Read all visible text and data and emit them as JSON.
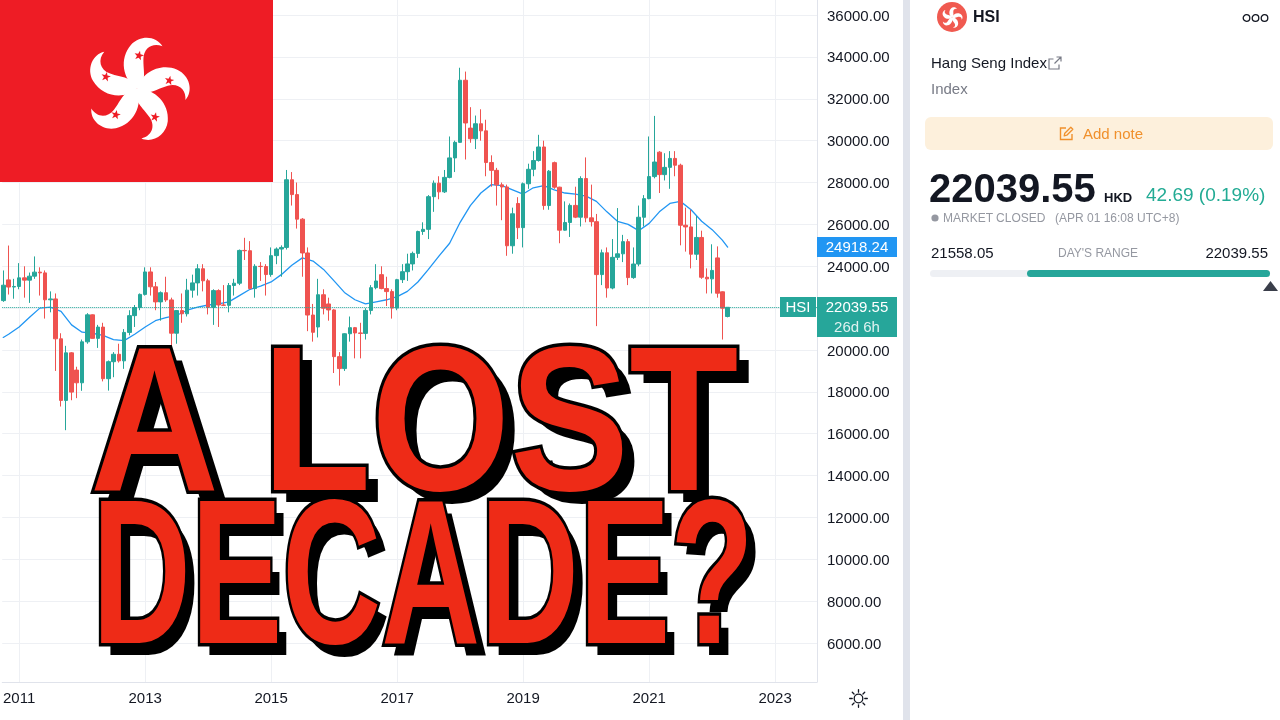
{
  "chart_data": {
    "type": "candlestick",
    "title": "A LOST DECADE?",
    "x": [
      "2010-10",
      "2010-11",
      "2010-12",
      "2011-01",
      "2011-02",
      "2011-03",
      "2011-04",
      "2011-05",
      "2011-06",
      "2011-07",
      "2011-08",
      "2011-09",
      "2011-10",
      "2011-11",
      "2011-12",
      "2012-01",
      "2012-02",
      "2012-03",
      "2012-04",
      "2012-05",
      "2012-06",
      "2012-07",
      "2012-08",
      "2012-09",
      "2012-10",
      "2012-11",
      "2012-12",
      "2013-01",
      "2013-02",
      "2013-03",
      "2013-04",
      "2013-05",
      "2013-06",
      "2013-07",
      "2013-08",
      "2013-09",
      "2013-10",
      "2013-11",
      "2013-12",
      "2014-01",
      "2014-02",
      "2014-03",
      "2014-04",
      "2014-05",
      "2014-06",
      "2014-07",
      "2014-08",
      "2014-09",
      "2014-10",
      "2014-11",
      "2014-12",
      "2015-01",
      "2015-02",
      "2015-03",
      "2015-04",
      "2015-05",
      "2015-06",
      "2015-07",
      "2015-08",
      "2015-09",
      "2015-10",
      "2015-11",
      "2015-12",
      "2016-01",
      "2016-02",
      "2016-03",
      "2016-04",
      "2016-05",
      "2016-06",
      "2016-07",
      "2016-08",
      "2016-09",
      "2016-10",
      "2016-11",
      "2016-12",
      "2017-01",
      "2017-02",
      "2017-03",
      "2017-04",
      "2017-05",
      "2017-06",
      "2017-07",
      "2017-08",
      "2017-09",
      "2017-10",
      "2017-11",
      "2017-12",
      "2018-01",
      "2018-02",
      "2018-03",
      "2018-04",
      "2018-05",
      "2018-06",
      "2018-07",
      "2018-08",
      "2018-09",
      "2018-10",
      "2018-11",
      "2018-12",
      "2019-01",
      "2019-02",
      "2019-03",
      "2019-04",
      "2019-05",
      "2019-06",
      "2019-07",
      "2019-08",
      "2019-09",
      "2019-10",
      "2019-11",
      "2019-12",
      "2020-01",
      "2020-02",
      "2020-03",
      "2020-04",
      "2020-05",
      "2020-06",
      "2020-07",
      "2020-08",
      "2020-09",
      "2020-10",
      "2020-11",
      "2020-12",
      "2021-01",
      "2021-02",
      "2021-03",
      "2021-04",
      "2021-05",
      "2021-06",
      "2021-07",
      "2021-08",
      "2021-09",
      "2021-10",
      "2021-11",
      "2021-12",
      "2022-01",
      "2022-02",
      "2022-03",
      "2022-04"
    ],
    "ohlc": [
      [
        22360,
        23800,
        22300,
        23096
      ],
      [
        23350,
        24990,
        22650,
        23008
      ],
      [
        23008,
        23400,
        22450,
        23035
      ],
      [
        23035,
        24150,
        22900,
        23447
      ],
      [
        23447,
        24000,
        22500,
        23338
      ],
      [
        23338,
        23700,
        22250,
        23527
      ],
      [
        23527,
        24470,
        23400,
        23720
      ],
      [
        23720,
        23950,
        22600,
        23684
      ],
      [
        23684,
        23800,
        21500,
        22398
      ],
      [
        22398,
        22800,
        21800,
        22440
      ],
      [
        22440,
        22700,
        19000,
        20535
      ],
      [
        20535,
        20800,
        17300,
        17592
      ],
      [
        17592,
        20200,
        16170,
        19864
      ],
      [
        19864,
        19900,
        17600,
        17989
      ],
      [
        19040,
        19200,
        17700,
        18434
      ],
      [
        18434,
        20500,
        18050,
        20390
      ],
      [
        20390,
        21760,
        20300,
        21680
      ],
      [
        21680,
        21700,
        20550,
        20556
      ],
      [
        20556,
        21200,
        20100,
        21094
      ],
      [
        21094,
        21300,
        18500,
        18630
      ],
      [
        18630,
        19500,
        18060,
        19441
      ],
      [
        19441,
        19900,
        18700,
        19796
      ],
      [
        19796,
        20300,
        19400,
        19482
      ],
      [
        19482,
        21000,
        19100,
        20840
      ],
      [
        20840,
        21900,
        20700,
        21641
      ],
      [
        21641,
        22150,
        21100,
        22030
      ],
      [
        22030,
        22700,
        21900,
        22657
      ],
      [
        22657,
        23950,
        22600,
        23729
      ],
      [
        23729,
        23950,
        22600,
        23020
      ],
      [
        23020,
        23250,
        21900,
        22299
      ],
      [
        22299,
        22800,
        21400,
        22737
      ],
      [
        22737,
        23500,
        22300,
        22392
      ],
      [
        22392,
        22500,
        19400,
        20803
      ],
      [
        20803,
        21900,
        20300,
        21883
      ],
      [
        21883,
        22700,
        21300,
        21731
      ],
      [
        21731,
        23400,
        21600,
        22859
      ],
      [
        22859,
        23600,
        22500,
        23206
      ],
      [
        23206,
        24100,
        22600,
        23881
      ],
      [
        23881,
        24100,
        22800,
        23306
      ],
      [
        23306,
        23400,
        21700,
        22035
      ],
      [
        22035,
        22900,
        21200,
        22837
      ],
      [
        22837,
        22900,
        21100,
        22151
      ],
      [
        22151,
        23100,
        22100,
        22134
      ],
      [
        22134,
        23200,
        21800,
        23082
      ],
      [
        23082,
        23400,
        22600,
        23191
      ],
      [
        23191,
        24800,
        23100,
        24757
      ],
      [
        24757,
        25360,
        24300,
        24742
      ],
      [
        24742,
        25200,
        22900,
        22933
      ],
      [
        22933,
        24100,
        22500,
        23998
      ],
      [
        23998,
        24200,
        23300,
        23987
      ],
      [
        23987,
        24100,
        22600,
        23605
      ],
      [
        23605,
        24900,
        23500,
        24507
      ],
      [
        24507,
        24900,
        24100,
        24823
      ],
      [
        24823,
        25000,
        23500,
        24901
      ],
      [
        24901,
        28600,
        24800,
        28133
      ],
      [
        28133,
        28500,
        26900,
        27424
      ],
      [
        27424,
        28000,
        25800,
        26250
      ],
      [
        26250,
        26300,
        23500,
        24636
      ],
      [
        24636,
        24900,
        20900,
        21671
      ],
      [
        21671,
        22200,
        20400,
        20846
      ],
      [
        21100,
        23400,
        20600,
        22640
      ],
      [
        22640,
        22900,
        21700,
        21996
      ],
      [
        22200,
        22500,
        21400,
        21914
      ],
      [
        21914,
        21950,
        18900,
        19683
      ],
      [
        19683,
        19900,
        18300,
        19112
      ],
      [
        19112,
        20800,
        19000,
        20777
      ],
      [
        20777,
        21600,
        20400,
        21067
      ],
      [
        21067,
        21100,
        19600,
        20815
      ],
      [
        20815,
        21300,
        19600,
        20794
      ],
      [
        20794,
        22000,
        20500,
        21891
      ],
      [
        21891,
        23100,
        21700,
        22977
      ],
      [
        22977,
        24100,
        22900,
        23297
      ],
      [
        23600,
        24000,
        22900,
        22935
      ],
      [
        22935,
        23500,
        22100,
        22790
      ],
      [
        22790,
        22900,
        21500,
        22001
      ],
      [
        22001,
        23400,
        21900,
        23361
      ],
      [
        23361,
        24100,
        23200,
        23741
      ],
      [
        23741,
        24600,
        23300,
        24112
      ],
      [
        24112,
        24700,
        23800,
        24615
      ],
      [
        24615,
        25700,
        24400,
        25661
      ],
      [
        25661,
        26100,
        25500,
        25765
      ],
      [
        25765,
        27400,
        25300,
        27324
      ],
      [
        27324,
        28100,
        26600,
        27970
      ],
      [
        27970,
        28300,
        27200,
        27554
      ],
      [
        27554,
        28600,
        27500,
        28246
      ],
      [
        28246,
        30200,
        28200,
        29177
      ],
      [
        29177,
        30000,
        28500,
        29919
      ],
      [
        29919,
        33484,
        29900,
        32887
      ],
      [
        32887,
        33300,
        29100,
        30845
      ],
      [
        30600,
        31600,
        29900,
        30093
      ],
      [
        30093,
        31200,
        29600,
        30808
      ],
      [
        30808,
        31500,
        30000,
        30469
      ],
      [
        30469,
        31000,
        28300,
        28955
      ],
      [
        28955,
        29300,
        27800,
        28583
      ],
      [
        28583,
        28700,
        26900,
        27889
      ],
      [
        27889,
        28000,
        26200,
        27789
      ],
      [
        27789,
        27900,
        24500,
        24980
      ],
      [
        24980,
        26800,
        24600,
        26507
      ],
      [
        27000,
        27300,
        25300,
        25846
      ],
      [
        25846,
        28000,
        24900,
        27942
      ],
      [
        27942,
        28900,
        27700,
        28633
      ],
      [
        28633,
        29500,
        28300,
        29051
      ],
      [
        29051,
        30280,
        29000,
        29699
      ],
      [
        29699,
        30000,
        26700,
        26901
      ],
      [
        26901,
        28600,
        26700,
        28543
      ],
      [
        28950,
        29000,
        27700,
        27778
      ],
      [
        27778,
        27800,
        25100,
        25725
      ],
      [
        25725,
        27100,
        25700,
        26092
      ],
      [
        26092,
        27000,
        25400,
        26907
      ],
      [
        26907,
        27800,
        26300,
        26346
      ],
      [
        26346,
        28300,
        25900,
        28190
      ],
      [
        28190,
        29200,
        26100,
        26313
      ],
      [
        26313,
        27900,
        25900,
        26130
      ],
      [
        26130,
        26500,
        21140,
        23603
      ],
      [
        23603,
        24800,
        23100,
        24644
      ],
      [
        24644,
        24900,
        22500,
        22961
      ],
      [
        22961,
        25300,
        22900,
        24427
      ],
      [
        24427,
        26780,
        24300,
        24595
      ],
      [
        24595,
        25500,
        24200,
        25177
      ],
      [
        25177,
        25300,
        23100,
        23459
      ],
      [
        23459,
        24900,
        23400,
        24107
      ],
      [
        24107,
        26900,
        24000,
        26341
      ],
      [
        26341,
        27400,
        25900,
        27231
      ],
      [
        27231,
        30200,
        27200,
        28284
      ],
      [
        28284,
        31183,
        28200,
        28980
      ],
      [
        29450,
        29500,
        27500,
        28378
      ],
      [
        28378,
        29400,
        28100,
        28725
      ],
      [
        28725,
        29500,
        27700,
        29152
      ],
      [
        29152,
        29500,
        28300,
        28828
      ],
      [
        28828,
        28900,
        25000,
        25961
      ],
      [
        25961,
        26800,
        24700,
        25879
      ],
      [
        25879,
        26700,
        23900,
        24576
      ],
      [
        24576,
        26400,
        24300,
        25377
      ],
      [
        25377,
        25700,
        23400,
        23475
      ],
      [
        23475,
        23900,
        22700,
        23398
      ],
      [
        23398,
        25050,
        22700,
        23802
      ],
      [
        24400,
        24950,
        22500,
        22713
      ],
      [
        22780,
        22800,
        20500,
        21997
      ],
      [
        21600,
        22039.55,
        21558.05,
        22039.55
      ]
    ],
    "colors": [
      "#26a69a",
      "#ef5350",
      "#26a69a",
      "#26a69a",
      "#ef5350",
      "#26a69a",
      "#26a69a",
      "#ef5350",
      "#ef5350",
      "#26a69a",
      "#ef5350",
      "#ef5350",
      "#26a69a",
      "#ef5350",
      "#ef5350",
      "#26a69a",
      "#26a69a",
      "#ef5350",
      "#26a69a",
      "#ef5350",
      "#26a69a",
      "#26a69a",
      "#ef5350",
      "#26a69a",
      "#26a69a",
      "#26a69a",
      "#26a69a",
      "#26a69a",
      "#ef5350",
      "#ef5350",
      "#26a69a",
      "#ef5350",
      "#ef5350",
      "#26a69a",
      "#ef5350",
      "#26a69a",
      "#26a69a",
      "#26a69a",
      "#ef5350",
      "#ef5350",
      "#26a69a",
      "#ef5350",
      "#ef5350",
      "#26a69a",
      "#26a69a",
      "#26a69a",
      "#ef5350",
      "#ef5350",
      "#26a69a",
      "#ef5350",
      "#ef5350",
      "#26a69a",
      "#26a69a",
      "#26a69a",
      "#26a69a",
      "#ef5350",
      "#ef5350",
      "#ef5350",
      "#ef5350",
      "#ef5350",
      "#26a69a",
      "#ef5350",
      "#ef5350",
      "#ef5350",
      "#ef5350",
      "#26a69a",
      "#26a69a",
      "#ef5350",
      "#ef5350",
      "#26a69a",
      "#26a69a",
      "#26a69a",
      "#ef5350",
      "#ef5350",
      "#ef5350",
      "#26a69a",
      "#26a69a",
      "#26a69a",
      "#26a69a",
      "#26a69a",
      "#26a69a",
      "#26a69a",
      "#26a69a",
      "#ef5350",
      "#26a69a",
      "#26a69a",
      "#26a69a",
      "#26a69a",
      "#ef5350",
      "#ef5350",
      "#26a69a",
      "#ef5350",
      "#ef5350",
      "#ef5350",
      "#ef5350",
      "#ef5350",
      "#ef5350",
      "#26a69a",
      "#ef5350",
      "#26a69a",
      "#26a69a",
      "#26a69a",
      "#26a69a",
      "#ef5350",
      "#26a69a",
      "#ef5350",
      "#ef5350",
      "#26a69a",
      "#26a69a",
      "#ef5350",
      "#26a69a",
      "#ef5350",
      "#ef5350",
      "#ef5350",
      "#26a69a",
      "#ef5350",
      "#26a69a",
      "#26a69a",
      "#26a69a",
      "#ef5350",
      "#26a69a",
      "#26a69a",
      "#26a69a",
      "#26a69a",
      "#26a69a",
      "#ef5350",
      "#26a69a",
      "#26a69a",
      "#ef5350",
      "#ef5350",
      "#ef5350",
      "#ef5350",
      "#26a69a",
      "#ef5350",
      "#ef5350",
      "#26a69a",
      "#ef5350",
      "#ef5350",
      "#26a69a"
    ],
    "series": [
      {
        "type": "line",
        "color": "#2196f3",
        "x": [
          "2010-10",
          "2010-11",
          "2011-01",
          "2011-03",
          "2011-05",
          "2011-07",
          "2011-09",
          "2011-11",
          "2012-01",
          "2012-03",
          "2012-05",
          "2012-07",
          "2012-09",
          "2012-11",
          "2013-01",
          "2013-03",
          "2013-05",
          "2013-07",
          "2013-09",
          "2013-11",
          "2014-01",
          "2014-03",
          "2014-05",
          "2014-07",
          "2014-09",
          "2014-11",
          "2015-01",
          "2015-03",
          "2015-05",
          "2015-07",
          "2015-09",
          "2015-11",
          "2016-01",
          "2016-03",
          "2016-05",
          "2016-07",
          "2016-09",
          "2016-11",
          "2017-01",
          "2017-03",
          "2017-05",
          "2017-07",
          "2017-09",
          "2017-11",
          "2018-01",
          "2018-03",
          "2018-05",
          "2018-07",
          "2018-09",
          "2018-11",
          "2019-01",
          "2019-03",
          "2019-05",
          "2019-07",
          "2019-09",
          "2019-11",
          "2020-01",
          "2020-03",
          "2020-05",
          "2020-07",
          "2020-09",
          "2020-11",
          "2021-01",
          "2021-03",
          "2021-05",
          "2021-07",
          "2021-09",
          "2021-11",
          "2022-01",
          "2022-03",
          "2022-04"
        ],
        "values": [
          20600,
          20750,
          21100,
          21550,
          22000,
          22050,
          21850,
          21200,
          20850,
          20800,
          20700,
          20500,
          20450,
          20750,
          21100,
          21400,
          21550,
          21650,
          21900,
          22050,
          22150,
          22200,
          22300,
          22600,
          22900,
          23050,
          23250,
          23600,
          24050,
          24400,
          24250,
          23850,
          23300,
          22750,
          22400,
          22200,
          22300,
          22400,
          22550,
          22800,
          23250,
          23850,
          24500,
          25100,
          26100,
          26900,
          27500,
          27900,
          27850,
          27650,
          27450,
          27750,
          27850,
          27650,
          27500,
          27450,
          27350,
          27100,
          26600,
          26150,
          26000,
          25700,
          26050,
          26600,
          27000,
          27100,
          26700,
          26150,
          25750,
          25250,
          24918.24
        ]
      }
    ],
    "xlim": [
      "2010-09-25",
      "2023-09-01"
    ],
    "xticks": [
      "2011",
      "2013",
      "2015",
      "2017",
      "2019",
      "2021",
      "2023"
    ],
    "ylim": [
      4140,
      36720
    ],
    "yticks": [
      {
        "value": 6000,
        "label": "6000.00"
      },
      {
        "value": 8000,
        "label": "8000.00"
      },
      {
        "value": 10000,
        "label": "10000.00"
      },
      {
        "value": 12000,
        "label": "12000.00"
      },
      {
        "value": 14000,
        "label": "14000.00"
      },
      {
        "value": 16000,
        "label": "16000.00"
      },
      {
        "value": 18000,
        "label": "18000.00"
      },
      {
        "value": 20000,
        "label": "20000.00"
      },
      {
        "value": 22000,
        "label": null
      },
      {
        "value": 24000,
        "label": "24000.00"
      },
      {
        "value": 26000,
        "label": "26000.00"
      },
      {
        "value": 28000,
        "label": "28000.00"
      },
      {
        "value": 30000,
        "label": "30000.00"
      },
      {
        "value": 32000,
        "label": "32000.00"
      },
      {
        "value": 34000,
        "label": "34000.00"
      },
      {
        "value": 36000,
        "label": "36000.00"
      }
    ],
    "grid": true,
    "ref_lines": [
      {
        "axis": "y",
        "value": 22039.55,
        "label": "22039.55",
        "color": "#26a69a",
        "line_style": "dotted"
      }
    ],
    "annotations": [
      "24918.24",
      "HSI",
      "26d 6h",
      "HSI",
      "Hang Seng Index",
      "Index",
      "Add note",
      "22039.55",
      "HKD",
      "42.69 (0.19%)",
      "MARKET CLOSED",
      "(APR 01 16:08 UTC+8)",
      "21558.05",
      "DAY'S RANGE",
      "22039.55"
    ]
  }
}
